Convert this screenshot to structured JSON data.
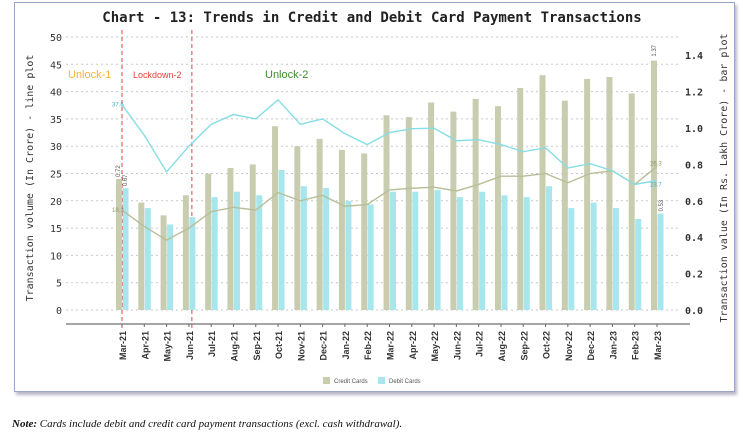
{
  "note": {
    "label": "Note:",
    "text": "Cards include debit and credit card payment transactions (excl. cash withdrawal)."
  },
  "phases": [
    {
      "label": "Unlock-1",
      "color": "#f5b335"
    },
    {
      "label": "Lockdown-2",
      "color": "#e8423c"
    },
    {
      "label": "Unlock-2",
      "color": "#3f8a2c"
    }
  ],
  "chart_data": {
    "type": "bar+line",
    "title": "Chart - 13: Trends in Credit and Debit Card Payment Transactions",
    "ylabel": "Transaction volume (In Crore) - line plot",
    "y2label": "Transaction value (In Rs. Lakh Crore) - bar plot",
    "ylim": [
      0,
      50
    ],
    "y2lim": [
      0,
      1.5
    ],
    "yticks": [
      0,
      5,
      10,
      15,
      20,
      25,
      30,
      35,
      40,
      45,
      50
    ],
    "y2ticks": [
      "0.0",
      "0.2",
      "0.4",
      "0.6",
      "0.8",
      "1.0",
      "1.2",
      "1.4"
    ],
    "grid": true,
    "legend_position": "bottom",
    "categories": [
      "Mar-21",
      "Apr-21",
      "May-21",
      "Jun-21",
      "Jul-21",
      "Aug-21",
      "Sep-21",
      "Oct-21",
      "Nov-21",
      "Dec-21",
      "Jan-22",
      "Feb-22",
      "Mar-22",
      "Apr-22",
      "May-22",
      "Jun-22",
      "Jul-22",
      "Aug-22",
      "Sep-22",
      "Oct-22",
      "Nov-22",
      "Dec-22",
      "Jan-23",
      "Feb-23",
      "Mar-23"
    ],
    "bar_series": [
      {
        "name": "Credit Cards",
        "color": "#c8cdb0",
        "values": [
          0.72,
          0.59,
          0.52,
          0.63,
          0.75,
          0.78,
          0.8,
          1.01,
          0.9,
          0.94,
          0.88,
          0.86,
          1.07,
          1.06,
          1.14,
          1.09,
          1.16,
          1.12,
          1.22,
          1.29,
          1.15,
          1.27,
          1.28,
          1.19,
          1.37
        ]
      },
      {
        "name": "Debit Cards",
        "color": "#a6e6ec",
        "values": [
          0.67,
          0.56,
          0.47,
          0.51,
          0.62,
          0.65,
          0.63,
          0.77,
          0.68,
          0.67,
          0.6,
          0.58,
          0.65,
          0.65,
          0.66,
          0.62,
          0.65,
          0.63,
          0.62,
          0.68,
          0.56,
          0.59,
          0.56,
          0.5,
          0.53
        ]
      }
    ],
    "line_series": [
      {
        "name": "Credit Cards volume",
        "color": "#b8bf98",
        "values": [
          18.3,
          15.3,
          12.8,
          15,
          18,
          18.8,
          18.3,
          21.5,
          20,
          21,
          19,
          19.3,
          22,
          22.3,
          22.5,
          21.8,
          23,
          24.5,
          24.5,
          25,
          23.3,
          25,
          25.5,
          23,
          26.3
        ]
      },
      {
        "name": "Debit Cards volume",
        "color": "#86dde4",
        "values": [
          37.6,
          32,
          25.3,
          30,
          34,
          35.8,
          35,
          38.5,
          34,
          35,
          32.3,
          30.3,
          32.5,
          33.2,
          33.3,
          31,
          31.2,
          30.3,
          29,
          29.7,
          26,
          26.8,
          25.5,
          23,
          23.7
        ]
      }
    ],
    "data_labels": {
      "start_credit_bar": "0.72",
      "start_debit_bar": "0.67",
      "start_debit_line": "37.6",
      "start_credit_line": "18.3",
      "end_credit_bar": "1.37",
      "end_debit_bar": "0.53",
      "end_credit_line": "26.3",
      "end_debit_line": "23.7"
    },
    "legend": [
      "Credit Cards",
      "Debit Cards"
    ]
  }
}
